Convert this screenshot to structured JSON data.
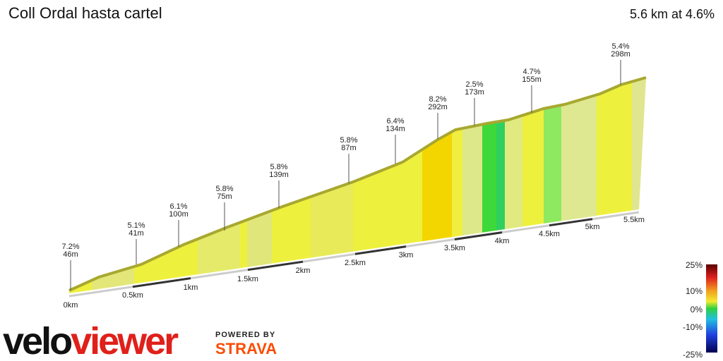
{
  "header": {
    "title": "Coll Ordal hasta cartel",
    "summary": "5.6 km at 4.6%"
  },
  "annotations": [
    {
      "grade": "7.2%",
      "length": "46m"
    },
    {
      "grade": "5.1%",
      "length": "41m"
    },
    {
      "grade": "6.1%",
      "length": "100m"
    },
    {
      "grade": "5.8%",
      "length": "75m"
    },
    {
      "grade": "5.8%",
      "length": "139m"
    },
    {
      "grade": "5.8%",
      "length": "87m"
    },
    {
      "grade": "6.4%",
      "length": "134m"
    },
    {
      "grade": "8.2%",
      "length": "292m"
    },
    {
      "grade": "2.5%",
      "length": "173m"
    },
    {
      "grade": "4.7%",
      "length": "155m"
    },
    {
      "grade": "5.4%",
      "length": "298m"
    }
  ],
  "distance_labels": [
    "0km",
    "0.5km",
    "1km",
    "1.5km",
    "2km",
    "2.5km",
    "3km",
    "3.5km",
    "4km",
    "4.5km",
    "5km",
    "5.5km"
  ],
  "color_scale": {
    "labels": [
      "25%",
      "10%",
      "0%",
      "-10%",
      "-25%"
    ]
  },
  "branding": {
    "logo_dark": "velo",
    "logo_red": "viewer",
    "powered_by": "POWERED BY",
    "partner": "STRAVA"
  }
}
